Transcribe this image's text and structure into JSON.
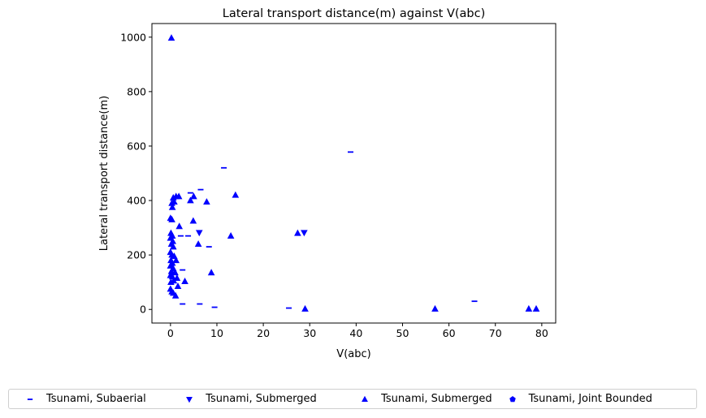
{
  "chart_data": {
    "type": "scatter",
    "title": "Lateral transport distance(m) against V(abc)",
    "xlabel": "V(abc)",
    "ylabel": "Lateral transport distance(m)",
    "xlim": [
      -4,
      83
    ],
    "ylim": [
      -50,
      1050
    ],
    "xticks": [
      0,
      10,
      20,
      30,
      40,
      50,
      60,
      70,
      80
    ],
    "yticks": [
      0,
      200,
      400,
      600,
      800,
      1000
    ],
    "grid": false,
    "legend_position": "below",
    "series": [
      {
        "name": "Tsunami, Subaerial",
        "marker": "hline",
        "color": "#0000ff",
        "points": [
          [
            11.5,
            520
          ],
          [
            38.8,
            578
          ],
          [
            6.5,
            440
          ],
          [
            4.3,
            428
          ],
          [
            2.2,
            270
          ],
          [
            3.8,
            270
          ],
          [
            8.3,
            230
          ],
          [
            2.6,
            145
          ],
          [
            6.3,
            20
          ],
          [
            2.6,
            20
          ],
          [
            9.5,
            8
          ],
          [
            25.5,
            5
          ],
          [
            65.5,
            30
          ]
        ]
      },
      {
        "name": "Tsunami, Submerged",
        "marker": "triangle-down",
        "color": "#0000ff",
        "points": [
          [
            6.2,
            282
          ],
          [
            28.8,
            282
          ]
        ]
      },
      {
        "name": "Tsunami, Submerged",
        "marker": "triangle-up",
        "color": "#0000ff",
        "points": [
          [
            0.2,
            997
          ],
          [
            14.0,
            420
          ],
          [
            1.2,
            415
          ],
          [
            1.8,
            415
          ],
          [
            0.6,
            410
          ],
          [
            5.0,
            415
          ],
          [
            4.3,
            400
          ],
          [
            7.8,
            395
          ],
          [
            0.8,
            395
          ],
          [
            0.3,
            390
          ],
          [
            0.4,
            375
          ],
          [
            0.0,
            335
          ],
          [
            0.3,
            330
          ],
          [
            4.9,
            325
          ],
          [
            1.9,
            305
          ],
          [
            0.1,
            280
          ],
          [
            0.4,
            270
          ],
          [
            0.0,
            262
          ],
          [
            0.5,
            250
          ],
          [
            0.2,
            240
          ],
          [
            0.6,
            230
          ],
          [
            6.0,
            240
          ],
          [
            13.0,
            270
          ],
          [
            27.4,
            280
          ],
          [
            0.0,
            210
          ],
          [
            0.3,
            200
          ],
          [
            0.8,
            195
          ],
          [
            1.2,
            180
          ],
          [
            0.1,
            180
          ],
          [
            0.4,
            170
          ],
          [
            0.0,
            160
          ],
          [
            0.6,
            150
          ],
          [
            0.2,
            140
          ],
          [
            1.0,
            135
          ],
          [
            0.0,
            125
          ],
          [
            0.4,
            120
          ],
          [
            1.4,
            115
          ],
          [
            0.7,
            105
          ],
          [
            0.1,
            100
          ],
          [
            3.1,
            103
          ],
          [
            8.8,
            135
          ],
          [
            1.6,
            85
          ],
          [
            0.0,
            75
          ],
          [
            0.3,
            65
          ],
          [
            0.6,
            60
          ],
          [
            1.1,
            50
          ],
          [
            29.0,
            2
          ],
          [
            57.0,
            2
          ],
          [
            77.2,
            2
          ],
          [
            78.8,
            2
          ]
        ]
      },
      {
        "name": "Tsunami, Joint Bounded",
        "marker": "pentagon",
        "color": "#0000ff",
        "points": []
      }
    ]
  }
}
